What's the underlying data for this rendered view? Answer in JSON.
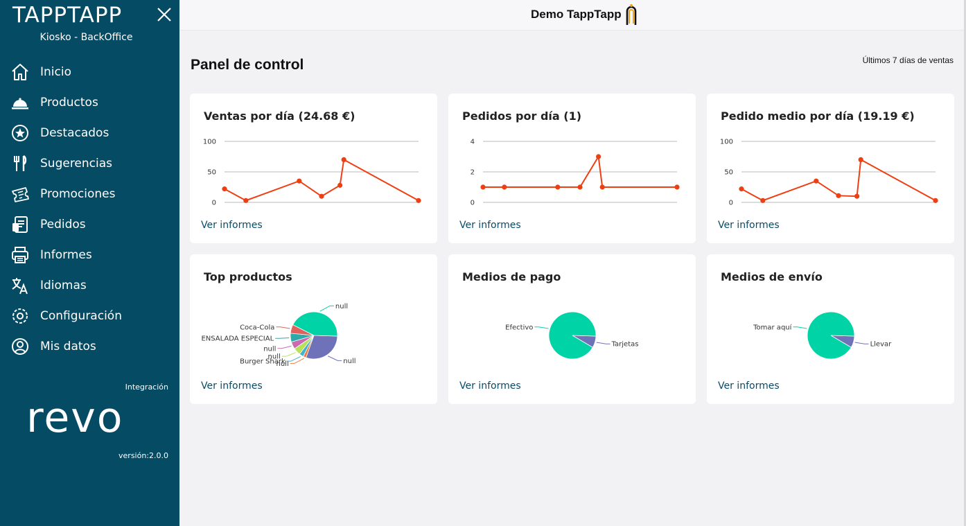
{
  "sidebar": {
    "brand": "TAPPTAPP",
    "subtitle": "Kiosko - BackOffice",
    "items": [
      {
        "label": "Inicio",
        "icon": "home-icon"
      },
      {
        "label": "Productos",
        "icon": "cloche-icon"
      },
      {
        "label": "Destacados",
        "icon": "star-icon"
      },
      {
        "label": "Sugerencias",
        "icon": "cutlery-icon"
      },
      {
        "label": "Promociones",
        "icon": "ticket-icon"
      },
      {
        "label": "Pedidos",
        "icon": "orders-icon"
      },
      {
        "label": "Informes",
        "icon": "printer-icon"
      },
      {
        "label": "Idiomas",
        "icon": "translate-icon"
      },
      {
        "label": "Configuración",
        "icon": "gear-icon"
      },
      {
        "label": "Mis datos",
        "icon": "user-icon"
      }
    ],
    "integration_label": "Integración",
    "integration_brand": "revo",
    "version": "versión:2.0.0"
  },
  "header": {
    "title": "Demo TappTapp"
  },
  "main": {
    "title": "Panel de control",
    "range": "Últimos 7 días de ventas",
    "link_label": "Ver informes"
  },
  "colors": {
    "sidebar": "#054b63",
    "line": "#ee3f12",
    "teal": "#00d4a6",
    "purple": "#6f72b8"
  },
  "chart_data": [
    {
      "type": "line",
      "title": "Ventas por día (24.68 €)",
      "ylim": [
        0,
        100
      ],
      "yticks": [
        "0",
        "50",
        "100"
      ],
      "series": [
        {
          "values": [
            22,
            3,
            35,
            10,
            28,
            70,
            3
          ]
        }
      ]
    },
    {
      "type": "line",
      "title": "Pedidos por día (1)",
      "ylim": [
        0,
        4
      ],
      "yticks": [
        "0",
        "2",
        "4"
      ],
      "series": [
        {
          "values": [
            1,
            1,
            1,
            1,
            3,
            1,
            1
          ]
        }
      ]
    },
    {
      "type": "line",
      "title": "Pedido medio por día (19.19 €)",
      "ylim": [
        0,
        100
      ],
      "yticks": [
        "0",
        "50",
        "100"
      ],
      "series": [
        {
          "values": [
            22,
            3,
            35,
            11,
            10,
            70,
            3
          ]
        }
      ]
    },
    {
      "type": "pie",
      "title": "Top productos",
      "slices": [
        {
          "label": "null",
          "value": 30,
          "color": "#6f72b8"
        },
        {
          "label": "null",
          "value": 2,
          "color": "#f07a3c"
        },
        {
          "label": "Burger Shark",
          "value": 3,
          "color": "#45b0cf"
        },
        {
          "label": "null",
          "value": 5,
          "color": "#b9e05a"
        },
        {
          "label": "null",
          "value": 5,
          "color": "#c86bb0"
        },
        {
          "label": "ENSALADA ESPECIAL",
          "value": 6,
          "color": "#2ea8a8"
        },
        {
          "label": "Coca-Cola",
          "value": 6,
          "color": "#e0625e"
        },
        {
          "label": "null",
          "value": 43,
          "color": "#00d4a6"
        }
      ]
    },
    {
      "type": "pie",
      "title": "Medios de pago",
      "slices": [
        {
          "label": "Tarjetas",
          "value": 8,
          "color": "#6f72b8"
        },
        {
          "label": "Efectivo",
          "value": 92,
          "color": "#00d4a6"
        }
      ]
    },
    {
      "type": "pie",
      "title": "Medios de envío",
      "slices": [
        {
          "label": "Llevar",
          "value": 8,
          "color": "#6f72b8"
        },
        {
          "label": "Tomar aquí",
          "value": 92,
          "color": "#00d4a6"
        }
      ]
    }
  ]
}
